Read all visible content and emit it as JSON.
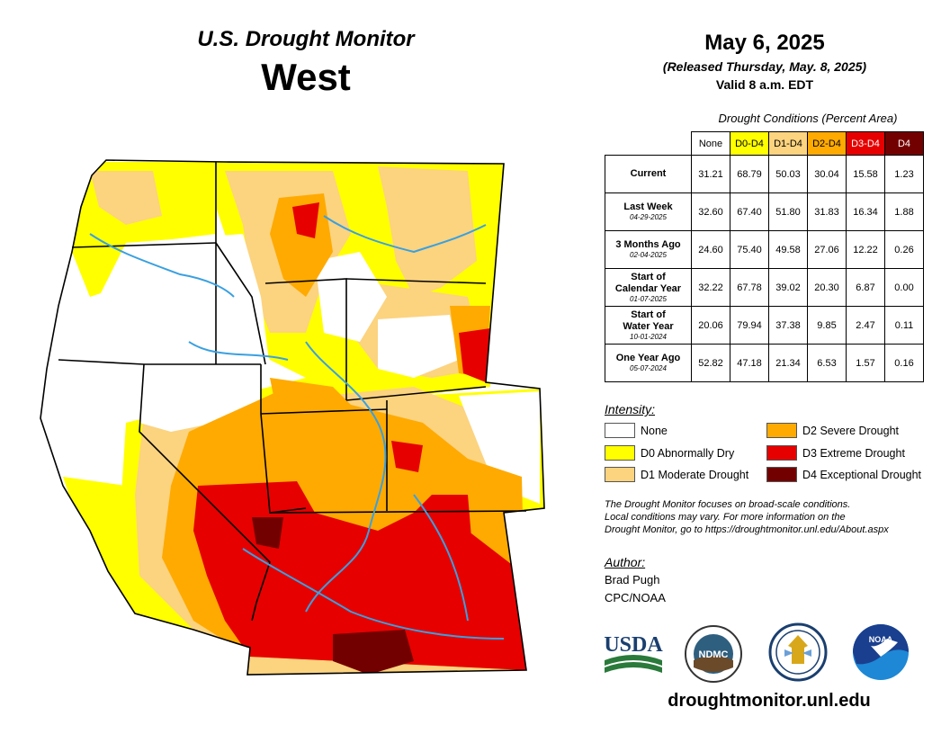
{
  "header": {
    "title": "U.S. Drought Monitor",
    "region": "West",
    "date": "May 6, 2025",
    "released": "(Released Thursday, May. 8, 2025)",
    "valid": "Valid 8 a.m. EDT"
  },
  "table": {
    "caption": "Drought Conditions (Percent Area)",
    "columns": [
      {
        "label": "None",
        "color": "#ffffff",
        "text_color": "#000000"
      },
      {
        "label": "D0-D4",
        "color": "#ffff00",
        "text_color": "#000000"
      },
      {
        "label": "D1-D4",
        "color": "#fcd37f",
        "text_color": "#000000"
      },
      {
        "label": "D2-D4",
        "color": "#ffaa00",
        "text_color": "#000000"
      },
      {
        "label": "D3-D4",
        "color": "#e60000",
        "text_color": "#ffffff"
      },
      {
        "label": "D4",
        "color": "#730000",
        "text_color": "#ffffff"
      }
    ],
    "rows": [
      {
        "label": "Current",
        "label2": "",
        "date": "",
        "values": [
          "31.21",
          "68.79",
          "50.03",
          "30.04",
          "15.58",
          "1.23"
        ]
      },
      {
        "label": "Last Week",
        "label2": "",
        "date": "04-29-2025",
        "values": [
          "32.60",
          "67.40",
          "51.80",
          "31.83",
          "16.34",
          "1.88"
        ]
      },
      {
        "label": "3 Months Ago",
        "label2": "",
        "date": "02-04-2025",
        "values": [
          "24.60",
          "75.40",
          "49.58",
          "27.06",
          "12.22",
          "0.26"
        ]
      },
      {
        "label": "Start of",
        "label2": "Calendar Year",
        "date": "01-07-2025",
        "values": [
          "32.22",
          "67.78",
          "39.02",
          "20.30",
          "6.87",
          "0.00"
        ]
      },
      {
        "label": "Start of",
        "label2": "Water Year",
        "date": "10-01-2024",
        "values": [
          "20.06",
          "79.94",
          "37.38",
          "9.85",
          "2.47",
          "0.11"
        ]
      },
      {
        "label": "One Year Ago",
        "label2": "",
        "date": "05-07-2024",
        "values": [
          "52.82",
          "47.18",
          "21.34",
          "6.53",
          "1.57",
          "0.16"
        ]
      }
    ]
  },
  "legend": {
    "title": "Intensity:",
    "items": [
      {
        "label": "None",
        "color": "#ffffff"
      },
      {
        "label": "D0 Abnormally Dry",
        "color": "#ffff00"
      },
      {
        "label": "D1 Moderate Drought",
        "color": "#fcd37f"
      },
      {
        "label": "D2 Severe Drought",
        "color": "#ffaa00"
      },
      {
        "label": "D3 Extreme Drought",
        "color": "#e60000"
      },
      {
        "label": "D4 Exceptional Drought",
        "color": "#730000"
      }
    ]
  },
  "note": {
    "line1": "The Drought Monitor focuses on broad-scale conditions.",
    "line2": "Local conditions may vary. For more information on the",
    "line3": "Drought Monitor, go to https://droughtmonitor.unl.edu/About.aspx"
  },
  "author": {
    "title": "Author:",
    "name": "Brad Pugh",
    "org": "CPC/NOAA"
  },
  "logos": {
    "usda": "USDA",
    "ndmc": "NDMC",
    "noaa": "NOAA"
  },
  "footer": {
    "site": "droughtmonitor.unl.edu"
  }
}
